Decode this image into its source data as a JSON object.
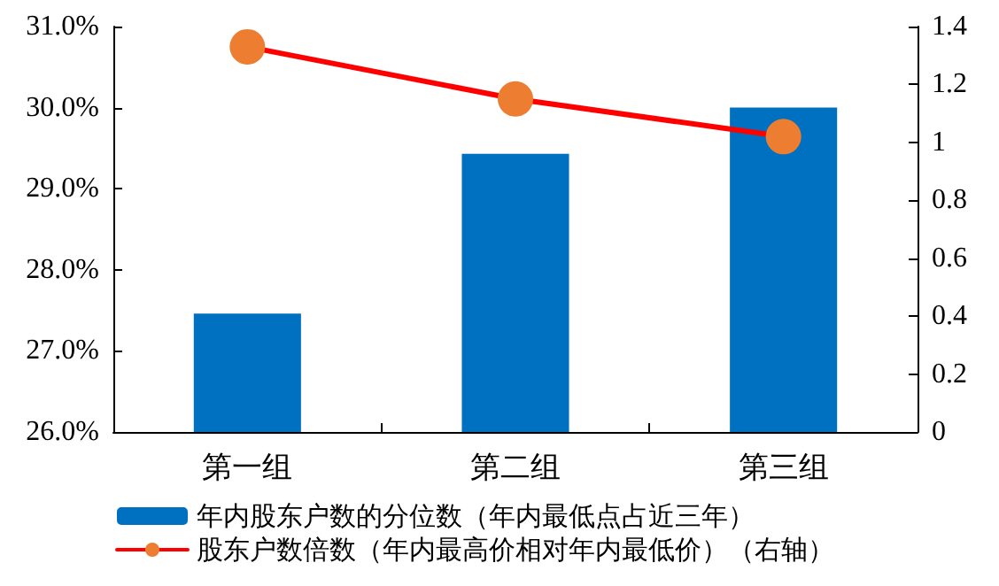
{
  "chart_data": {
    "type": "bar",
    "categories": [
      "第一组",
      "第二组",
      "第三组"
    ],
    "series": [
      {
        "name": "年内股东户数的分位数（年内最低点占近三年）",
        "color": "#0070c0",
        "values": [
          27.46,
          29.43,
          30.0
        ]
      },
      {
        "name": "股东户数倍数（年内最高价相对年内最低价）（右轴）",
        "type": "line",
        "axis": "y2",
        "color": "#ff0000",
        "colors": [
          "#ed7d31",
          "#ed7d31",
          "#ed7d31"
        ],
        "values": [
          1.33,
          1.15,
          1.02
        ]
      }
    ],
    "ylim": [
      26,
      31
    ],
    "yticks": [
      {
        "value": 26,
        "label": "26.0%"
      },
      {
        "value": 27,
        "label": "27.0%"
      },
      {
        "value": 28,
        "label": "28.0%"
      },
      {
        "value": 29,
        "label": "29.0%"
      },
      {
        "value": 30,
        "label": "30.0%"
      },
      {
        "value": 31,
        "label": "31.0%"
      }
    ],
    "y2lim": [
      0,
      1.4
    ],
    "y2ticks": [
      0,
      0.2,
      0.4,
      0.6,
      0.8,
      1,
      1.2,
      1.4
    ],
    "grid": false,
    "legend": "bottom",
    "marker": "circle",
    "line_style": "solid"
  }
}
